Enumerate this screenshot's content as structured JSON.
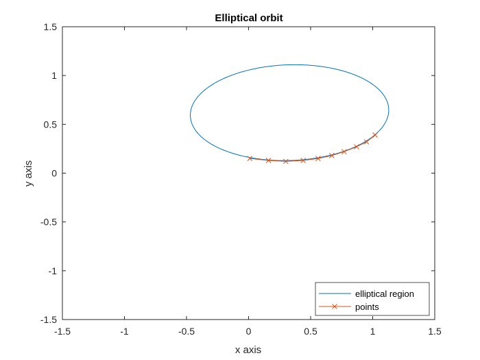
{
  "chart_data": {
    "type": "line",
    "title": "Elliptical orbit",
    "xlabel": "x axis",
    "ylabel": "y axis",
    "xlim": [
      -1.5,
      1.5
    ],
    "ylim": [
      -1.5,
      1.5
    ],
    "xticks": [
      -1.5,
      -1,
      -0.5,
      0,
      0.5,
      1,
      1.5
    ],
    "xtick_labels": [
      "-1.5",
      "-1",
      "-0.5",
      "0",
      "0.5",
      "1",
      "1.5"
    ],
    "yticks": [
      -1.5,
      -1,
      -0.5,
      0,
      0.5,
      1,
      1.5
    ],
    "ytick_labels": [
      "-1.5",
      "-1",
      "-0.5",
      "0",
      "0.5",
      "1",
      "1.5"
    ],
    "grid": false,
    "legend_position": "bottom-right",
    "series": [
      {
        "name": "elliptical region",
        "color": "#0072BD",
        "marker": "none",
        "ellipse": {
          "center": [
            0.33,
            0.62
          ],
          "semi_axis_x": 0.8,
          "semi_axis_y": 0.49,
          "rotation_deg": 3
        }
      },
      {
        "name": "points",
        "color": "#D95319",
        "marker": "x",
        "x": [
          0.01,
          0.16,
          0.3,
          0.44,
          0.56,
          0.67,
          0.77,
          0.87,
          0.95,
          1.02
        ],
        "y": [
          0.15,
          0.13,
          0.12,
          0.13,
          0.15,
          0.18,
          0.22,
          0.27,
          0.32,
          0.39
        ]
      }
    ]
  }
}
